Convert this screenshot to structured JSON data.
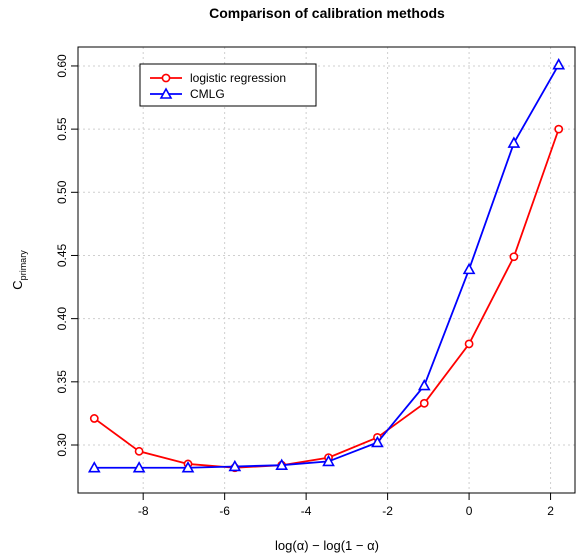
{
  "chart_data": {
    "type": "line",
    "title": "Comparison of calibration methods",
    "xlabel": "log(α) − log(1 − α)",
    "ylabel": "C",
    "ylabel_subscript": "primary",
    "xlim": [
      -9.6,
      2.6
    ],
    "ylim": [
      0.262,
      0.615
    ],
    "xticks": [
      -8,
      -6,
      -4,
      -2,
      0,
      2
    ],
    "xtick_labels": [
      "-8",
      "-6",
      "-4",
      "-2",
      "0",
      "2"
    ],
    "yticks": [
      0.3,
      0.35,
      0.4,
      0.45,
      0.5,
      0.55,
      0.6
    ],
    "ytick_labels": [
      "0.30",
      "0.35",
      "0.40",
      "0.45",
      "0.50",
      "0.55",
      "0.60"
    ],
    "grid": true,
    "legend_position": "top-left",
    "x": [
      -9.2,
      -8.1,
      -6.9,
      -5.75,
      -4.6,
      -3.45,
      -2.25,
      -1.1,
      0.0,
      1.1,
      2.2
    ],
    "series": [
      {
        "name": "logistic regression",
        "color": "#ff0000",
        "marker": "circle",
        "values": [
          0.321,
          0.295,
          0.285,
          0.282,
          0.284,
          0.29,
          0.306,
          0.333,
          0.38,
          0.449,
          0.55
        ]
      },
      {
        "name": "CMLG",
        "color": "#0000ff",
        "marker": "triangle",
        "values": [
          0.282,
          0.282,
          0.282,
          0.283,
          0.284,
          0.287,
          0.302,
          0.347,
          0.439,
          0.539,
          0.601
        ]
      }
    ]
  }
}
